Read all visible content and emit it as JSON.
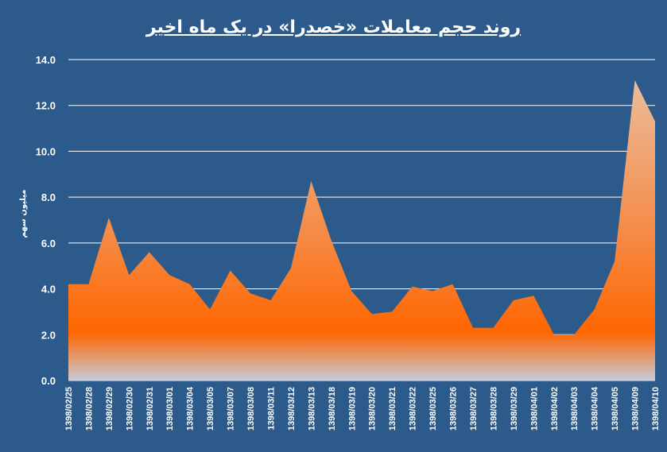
{
  "chart_data": {
    "type": "area",
    "title": "روند حجم معاملات «خصدرا» در یک ماه اخیر",
    "ylabel": "میلیون سهم",
    "xlabel": "",
    "ylim": [
      0,
      14
    ],
    "yticks": [
      "0.0",
      "2.0",
      "4.0",
      "6.0",
      "8.0",
      "10.0",
      "12.0",
      "14.0"
    ],
    "grid": true,
    "categories": [
      "1398/02/25",
      "1398/02/28",
      "1398/02/29",
      "1398/02/30",
      "1398/02/31",
      "1398/03/01",
      "1398/03/04",
      "1398/03/05",
      "1398/03/07",
      "1398/03/08",
      "1398/03/11",
      "1398/03/12",
      "1398/03/13",
      "1398/03/18",
      "1398/03/19",
      "1398/03/20",
      "1398/03/21",
      "1398/03/22",
      "1398/03/25",
      "1398/03/26",
      "1398/03/27",
      "1398/03/28",
      "1398/03/29",
      "1398/04/01",
      "1398/04/02",
      "1398/04/03",
      "1398/04/04",
      "1398/04/05",
      "1398/04/09",
      "1398/04/10"
    ],
    "values": [
      4.2,
      4.2,
      7.1,
      4.6,
      5.6,
      4.6,
      4.2,
      3.1,
      4.8,
      3.8,
      3.5,
      4.9,
      8.7,
      6.1,
      3.9,
      2.9,
      3.0,
      4.1,
      3.9,
      4.2,
      2.3,
      2.3,
      3.5,
      3.7,
      2.0,
      2.0,
      3.1,
      5.2,
      13.1,
      11.3
    ],
    "colors": {
      "background": "#2c5a8a",
      "fill_mid": "#ff6600",
      "fill_top": "#e9c3a5",
      "fill_bottom": "#c8ccd9",
      "grid": "#ffffff"
    }
  }
}
